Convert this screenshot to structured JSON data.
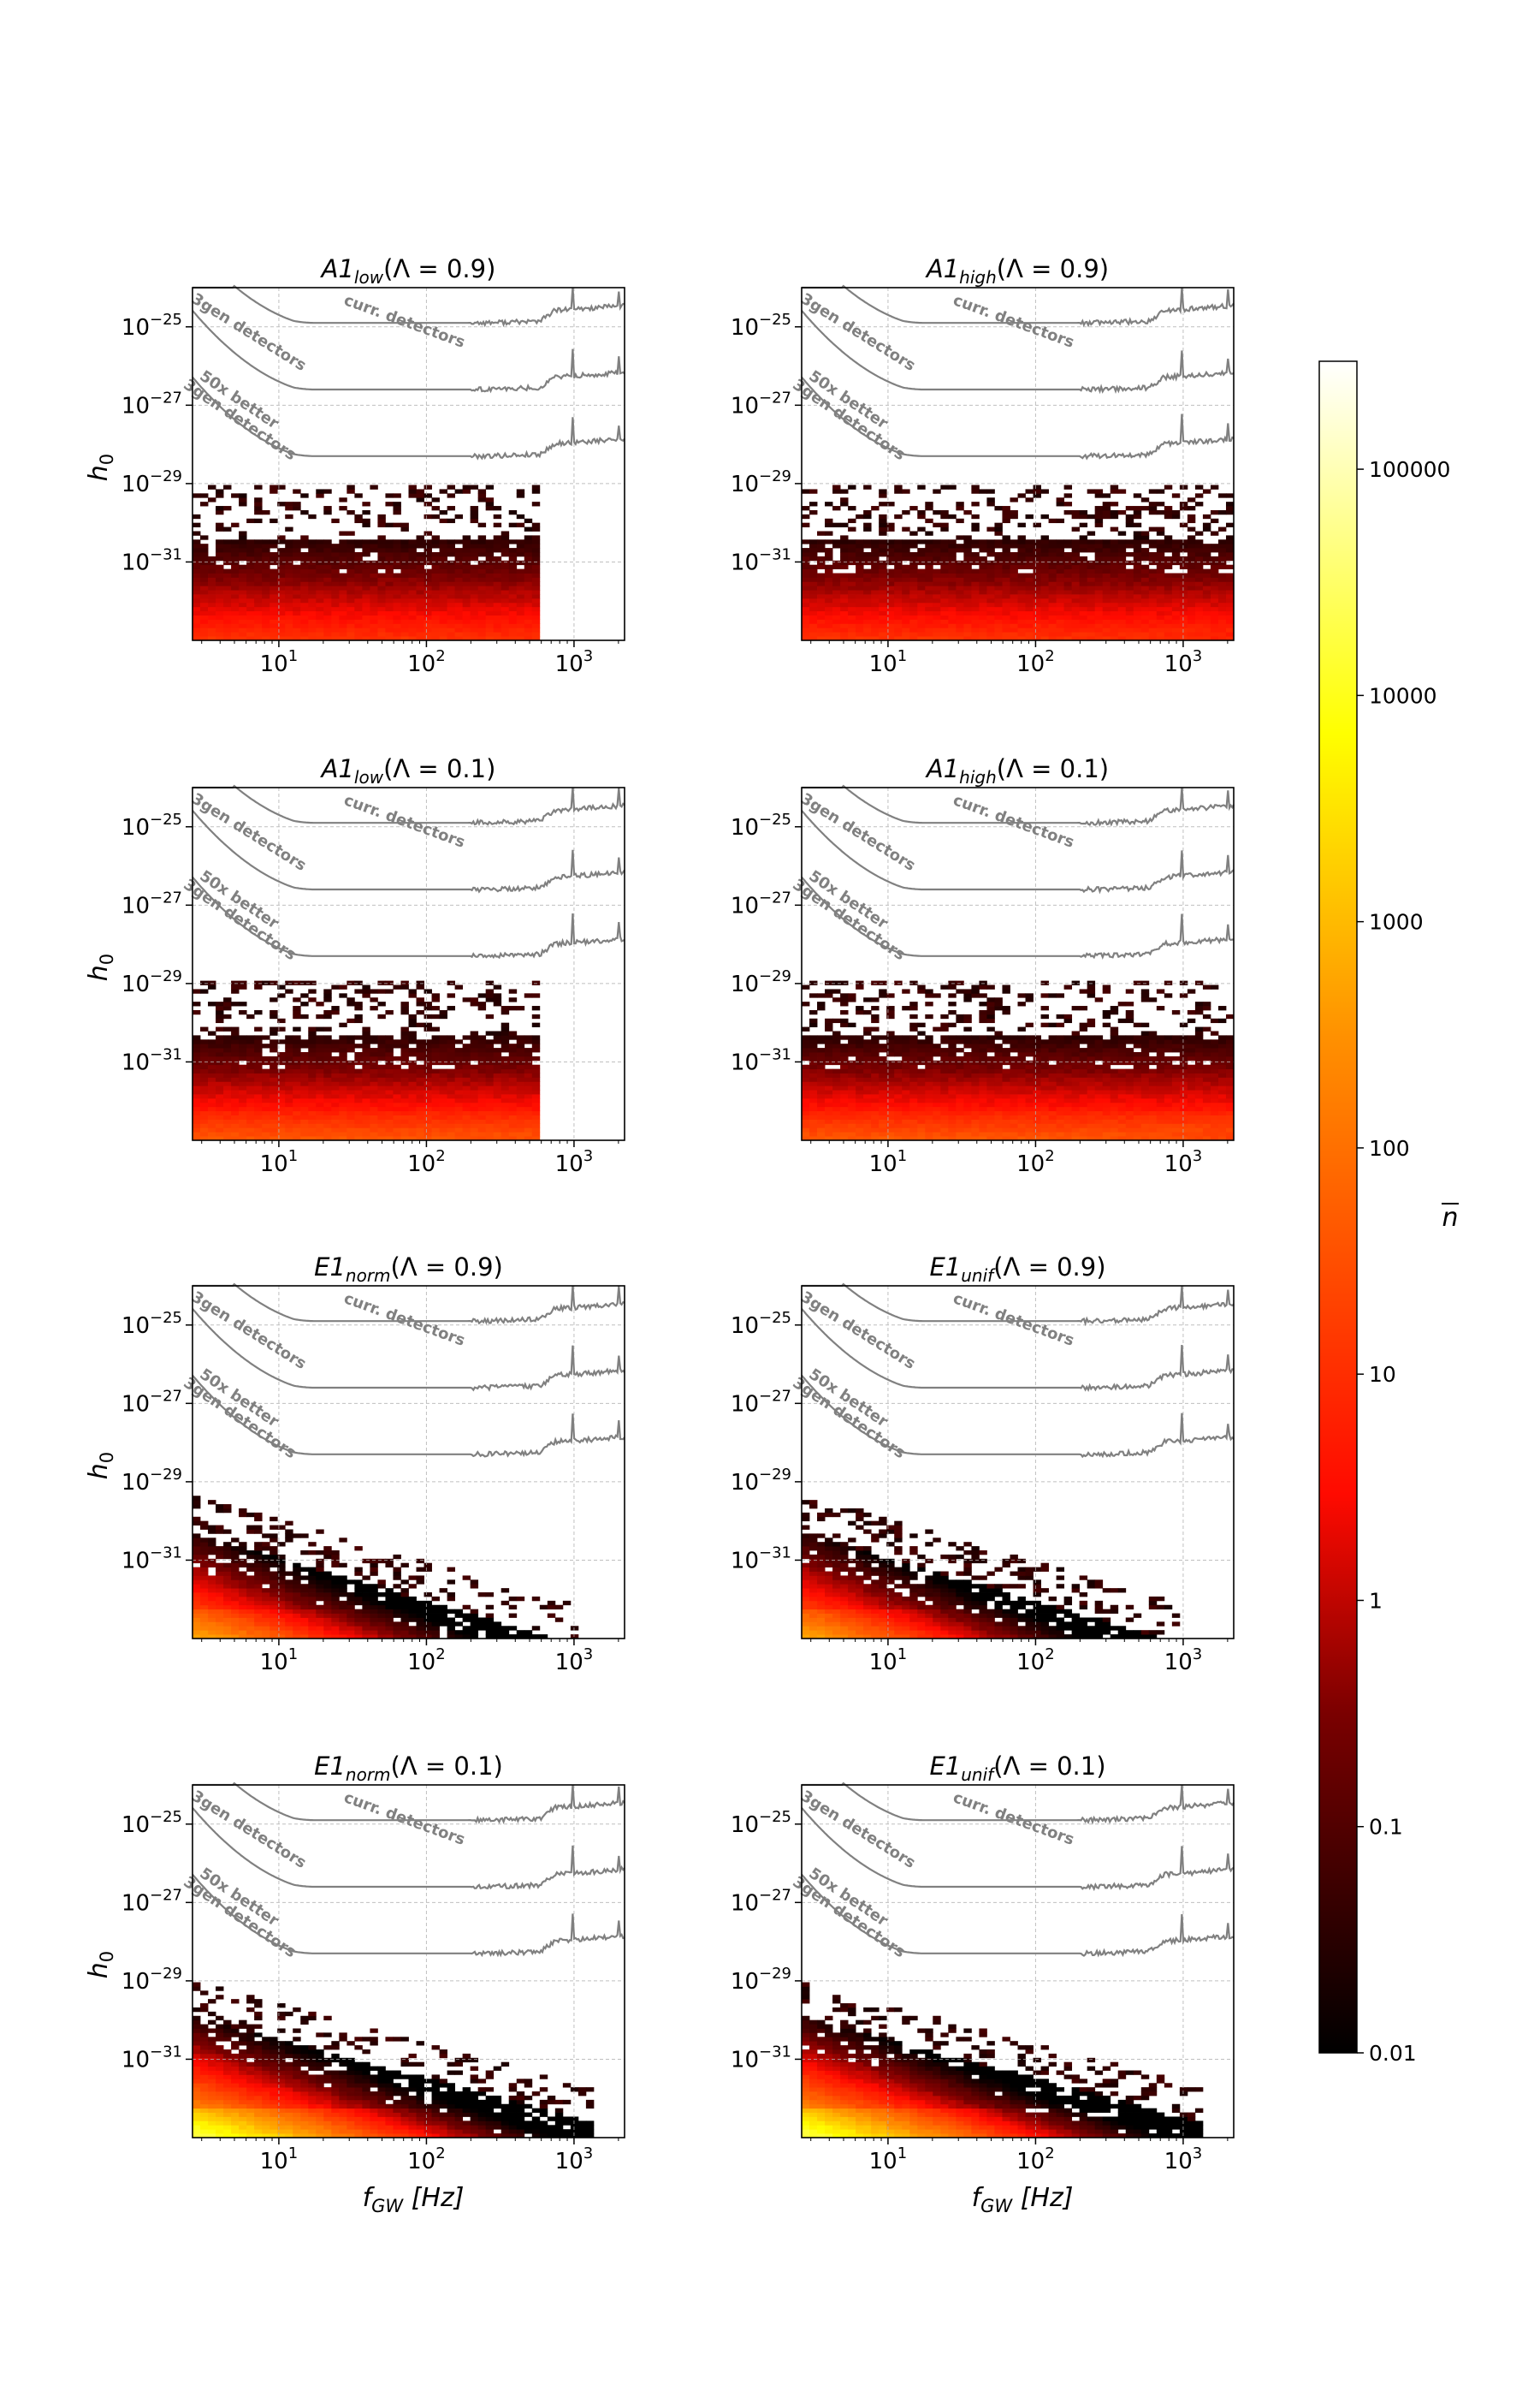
{
  "figure": {
    "shared": {
      "type": "heatmap",
      "xlabel_main": "f",
      "xlabel_sub": "GW",
      "xlabel_unit": "[Hz]",
      "ylabel_main": "h",
      "ylabel_sub": "0",
      "x_ticks": [
        {
          "base": "10",
          "exp": "1",
          "value": 10
        },
        {
          "base": "10",
          "exp": "2",
          "value": 100
        },
        {
          "base": "10",
          "exp": "3",
          "value": 1000
        }
      ],
      "y_ticks": [
        {
          "base": "10",
          "exp": "−25",
          "value": -25
        },
        {
          "base": "10",
          "exp": "−27",
          "value": -27
        },
        {
          "base": "10",
          "exp": "−29",
          "value": -29
        },
        {
          "base": "10",
          "exp": "−31",
          "value": -31
        }
      ],
      "xlim_hz": [
        2.6,
        2200
      ],
      "ylim_log10_h0": [
        -33.0,
        -24.0
      ],
      "sensitivity_curves": [
        {
          "label": "curr. detectors",
          "offset_log10": 0
        },
        {
          "label": "3gen detectors",
          "offset_log10": -1.7
        },
        {
          "label": "50x better\n3gen detectors",
          "offset_log10": -3.4
        }
      ]
    },
    "colorbar": {
      "label": "n",
      "scale": "log",
      "range": [
        0.01,
        300000
      ],
      "tick_labels": [
        "0.01",
        "0.1",
        "1",
        "10",
        "100",
        "1000",
        "10000",
        "100000"
      ],
      "tick_values": [
        0.01,
        0.1,
        1,
        10,
        100,
        1000,
        10000,
        100000
      ],
      "colormap": [
        "#000000",
        "#7a0000",
        "#ff0a00",
        "#ff9000",
        "#ffff00",
        "#ffffff"
      ]
    }
  },
  "chart_data": [
    {
      "type": "heatmap",
      "title_main": "A1",
      "title_sub": "low",
      "title_rest": "(Λ = 0.9)",
      "xlabel": "",
      "ylabel": "h0",
      "params": {
        "fmax_hz": 600,
        "bright_log10_density": 1.5,
        "slope": 0.0,
        "top_log10_h0": -30.4,
        "sparse_top_log10_h0": -29
      },
      "seed": 11
    },
    {
      "type": "heatmap",
      "title_main": "A1",
      "title_sub": "high",
      "title_rest": "(Λ = 0.9)",
      "xlabel": "",
      "ylabel": "",
      "params": {
        "fmax_hz": 2100,
        "bright_log10_density": 1.5,
        "slope": 0.0,
        "top_log10_h0": -30.4,
        "sparse_top_log10_h0": -29
      },
      "seed": 23
    },
    {
      "type": "heatmap",
      "title_main": "A1",
      "title_sub": "low",
      "title_rest": "(Λ = 0.1)",
      "xlabel": "",
      "ylabel": "h0",
      "params": {
        "fmax_hz": 600,
        "bright_log10_density": 2.0,
        "slope": 0.0,
        "top_log10_h0": -30.3,
        "sparse_top_log10_h0": -28.9
      },
      "seed": 37
    },
    {
      "type": "heatmap",
      "title_main": "A1",
      "title_sub": "high",
      "title_rest": "(Λ = 0.1)",
      "xlabel": "",
      "ylabel": "",
      "params": {
        "fmax_hz": 2100,
        "bright_log10_density": 2.0,
        "slope": 0.0,
        "top_log10_h0": -30.3,
        "sparse_top_log10_h0": -28.9
      },
      "seed": 41
    },
    {
      "type": "heatmap",
      "title_main": "E1",
      "title_sub": "norm",
      "title_rest": "(Λ = 0.9)",
      "xlabel": "",
      "ylabel": "h0",
      "params": {
        "fmax_hz": 1100,
        "bright_log10_density": 3.4,
        "slope": 1.1,
        "top_log10_h0": -30.3,
        "sparse_top_log10_h0": -29.3
      },
      "seed": 53
    },
    {
      "type": "heatmap",
      "title_main": "E1",
      "title_sub": "unif",
      "title_rest": "(Λ = 0.9)",
      "xlabel": "",
      "ylabel": "",
      "params": {
        "fmax_hz": 1000,
        "bright_log10_density": 3.4,
        "slope": 1.1,
        "top_log10_h0": -30.3,
        "sparse_top_log10_h0": -29.3
      },
      "seed": 67
    },
    {
      "type": "heatmap",
      "title_main": "E1",
      "title_sub": "norm",
      "title_rest": "(Λ = 0.1)",
      "xlabel": "f_GW [Hz]",
      "ylabel": "h0",
      "params": {
        "fmax_hz": 1300,
        "bright_log10_density": 4.3,
        "slope": 1.0,
        "top_log10_h0": -29.9,
        "sparse_top_log10_h0": -29.0
      },
      "seed": 79
    },
    {
      "type": "heatmap",
      "title_main": "E1",
      "title_sub": "unif",
      "title_rest": "(Λ = 0.1)",
      "xlabel": "f_GW [Hz]",
      "ylabel": "",
      "params": {
        "fmax_hz": 1400,
        "bright_log10_density": 4.3,
        "slope": 1.0,
        "top_log10_h0": -29.9,
        "sparse_top_log10_h0": -29.0
      },
      "seed": 83
    }
  ]
}
